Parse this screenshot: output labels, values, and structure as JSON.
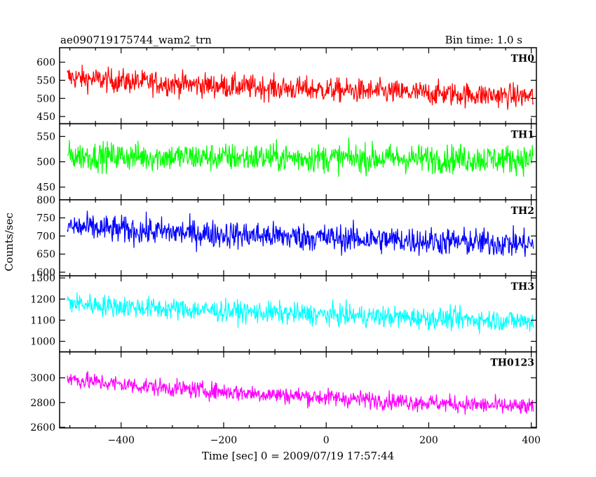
{
  "chart_data": {
    "type": "line",
    "title": "ae090719175744_wam2_trn",
    "bin_time_label": "Bin time: 1.0 s",
    "xlabel": "Time [sec] 0 = 2009/07/19 17:57:44",
    "ylabel": "Counts/sec",
    "xlim": [
      -520,
      410
    ],
    "x_ticks": [
      -400,
      -200,
      0,
      200,
      400
    ],
    "x_start": -505,
    "x_end": 404,
    "panels": [
      {
        "name": "TH0",
        "color": "#ff0000",
        "ylim": [
          430,
          640
        ],
        "y_ticks": [
          450,
          500,
          550,
          600
        ],
        "start_level": 560,
        "end_level": 505,
        "noise": 26,
        "min_clip": 440
      },
      {
        "name": "TH1",
        "color": "#00ff00",
        "ylim": [
          425,
          575
        ],
        "y_ticks": [
          450,
          500,
          550
        ],
        "start_level": 512,
        "end_level": 505,
        "noise": 22,
        "min_clip": 435
      },
      {
        "name": "TH2",
        "color": "#0000ff",
        "ylim": [
          590,
          800
        ],
        "y_ticks": [
          600,
          650,
          700,
          750,
          800
        ],
        "start_level": 728,
        "end_level": 678,
        "noise": 30,
        "min_clip": 600
      },
      {
        "name": "TH3",
        "color": "#00ffff",
        "ylim": [
          950,
          1310
        ],
        "y_ticks": [
          1000,
          1100,
          1200,
          1300
        ],
        "start_level": 1185,
        "end_level": 1095,
        "noise": 40,
        "min_clip": 960
      },
      {
        "name": "TH0123",
        "color": "#ff00ff",
        "ylim": [
          2595,
          3210
        ],
        "y_ticks": [
          2600,
          2800,
          3000
        ],
        "start_level": 3000,
        "end_level": 2760,
        "noise": 55,
        "min_clip": 2605
      }
    ]
  }
}
